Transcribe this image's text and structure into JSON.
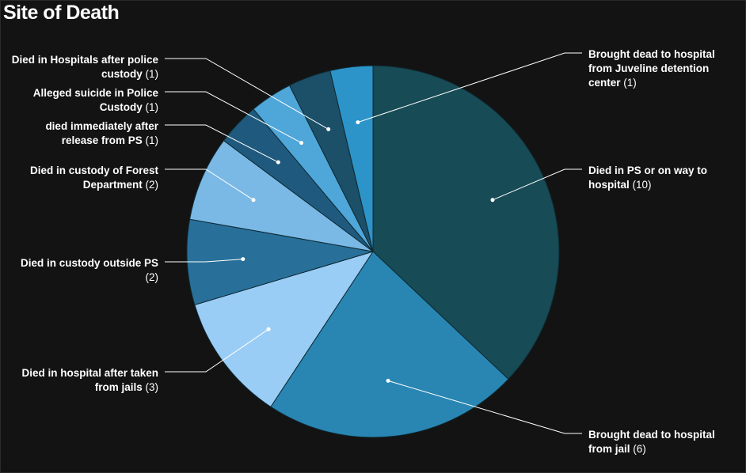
{
  "chart_data": {
    "type": "pie",
    "title": "Site of Death",
    "slices": [
      {
        "name": "Died in PS or on way to hospital",
        "value": 10,
        "lines": [
          "Died in PS or on way to",
          "hospital"
        ],
        "color": "#174b55"
      },
      {
        "name": "Brought dead to hospital from jail",
        "value": 6,
        "lines": [
          "Brought dead to hospital",
          "from jail"
        ],
        "color": "#2986b3"
      },
      {
        "name": "Died in hospital after taken from jails",
        "value": 3,
        "lines": [
          "Died in hospital after taken",
          "from jails"
        ],
        "color": "#9acdf6"
      },
      {
        "name": "Died in custody outside PS",
        "value": 2,
        "lines": [
          "Died in custody outside PS",
          ""
        ],
        "color": "#28709a"
      },
      {
        "name": "Died in custody of Forest Department",
        "value": 2,
        "lines": [
          "Died in custody of Forest",
          "Department"
        ],
        "color": "#7ab9e6"
      },
      {
        "name": "died immediately after release from PS",
        "value": 1,
        "lines": [
          "died immediately after",
          "release from PS"
        ],
        "color": "#1f5a7e"
      },
      {
        "name": "Alleged suicide in Police Custody",
        "value": 1,
        "lines": [
          "Alleged suicide in Police",
          "Custody"
        ],
        "color": "#4fa6d9"
      },
      {
        "name": "Died in Hospitals after police custody",
        "value": 1,
        "lines": [
          "Died in Hospitals after police",
          "custody"
        ],
        "color": "#1c4f68"
      },
      {
        "name": "Brought dead to hospital from Juveline detention center",
        "value": 1,
        "lines": [
          "Brought dead to hospital",
          "from Juveline detention",
          "center"
        ],
        "color": "#2c94c9"
      }
    ]
  }
}
